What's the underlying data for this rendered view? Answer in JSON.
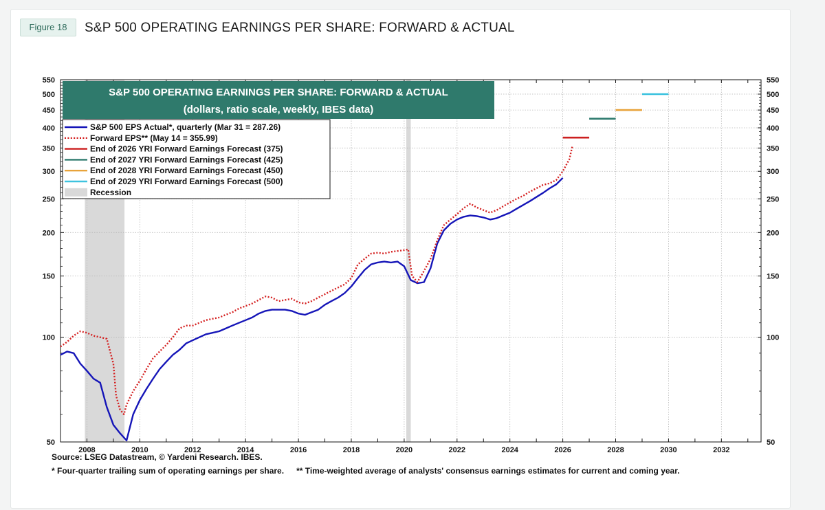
{
  "figure_tag": "Figure 18",
  "page_title": "S&P 500 OPERATING EARNINGS PER SHARE: FORWARD & ACTUAL",
  "source": "Source: LSEG Datastream, © Yardeni Research. IBES.",
  "footnote_1": "* Four-quarter trailing sum of operating earnings per share.",
  "footnote_2": "** Time-weighted average of analysts' consensus earnings estimates for current and coming year.",
  "chart_data": {
    "type": "line",
    "title": "S&P 500 OPERATING EARNINGS PER SHARE: FORWARD & ACTUAL",
    "subtitle": "(dollars, ratio scale, weekly, IBES data)",
    "y_scale": "log",
    "ylim": [
      50,
      550
    ],
    "xlim": [
      2007.0,
      2033.5
    ],
    "y_ticks": [
      50,
      100,
      150,
      200,
      250,
      300,
      350,
      400,
      450,
      500,
      550
    ],
    "x_ticks": [
      2008,
      2010,
      2012,
      2014,
      2016,
      2018,
      2020,
      2022,
      2024,
      2026,
      2028,
      2030,
      2032
    ],
    "grid": true,
    "legend_position": "top-left",
    "colors": {
      "actual": "#1515b8",
      "forward": "#d42020",
      "f2026": "#cc1f1f",
      "f2027": "#2e7a6e",
      "f2028": "#e8a33a",
      "f2029": "#3ec3df",
      "recession": "#d9d9d9",
      "header_bg": "#2f7a6c"
    },
    "recessions": [
      {
        "start": 2007.92,
        "end": 2009.42
      },
      {
        "start": 2020.08,
        "end": 2020.25
      }
    ],
    "series": [
      {
        "name": "S&P 500 EPS Actual*, quarterly (Mar 31 = 287.26)",
        "style": "solid",
        "points": [
          [
            2007.0,
            89
          ],
          [
            2007.25,
            91
          ],
          [
            2007.5,
            90
          ],
          [
            2007.75,
            84
          ],
          [
            2008.0,
            80
          ],
          [
            2008.25,
            76
          ],
          [
            2008.5,
            74
          ],
          [
            2008.75,
            63
          ],
          [
            2009.0,
            56
          ],
          [
            2009.25,
            53
          ],
          [
            2009.5,
            50.5
          ],
          [
            2009.75,
            60
          ],
          [
            2010.0,
            66
          ],
          [
            2010.25,
            71
          ],
          [
            2010.5,
            76
          ],
          [
            2010.75,
            81
          ],
          [
            2011.0,
            85
          ],
          [
            2011.25,
            89
          ],
          [
            2011.5,
            92
          ],
          [
            2011.75,
            96
          ],
          [
            2012.0,
            98
          ],
          [
            2012.25,
            100
          ],
          [
            2012.5,
            102
          ],
          [
            2012.75,
            103
          ],
          [
            2013.0,
            104
          ],
          [
            2013.25,
            106
          ],
          [
            2013.5,
            108
          ],
          [
            2013.75,
            110
          ],
          [
            2014.0,
            112
          ],
          [
            2014.25,
            114
          ],
          [
            2014.5,
            117
          ],
          [
            2014.75,
            119
          ],
          [
            2015.0,
            120
          ],
          [
            2015.25,
            120
          ],
          [
            2015.5,
            120
          ],
          [
            2015.75,
            119
          ],
          [
            2016.0,
            117
          ],
          [
            2016.25,
            116
          ],
          [
            2016.5,
            118
          ],
          [
            2016.75,
            120
          ],
          [
            2017.0,
            124
          ],
          [
            2017.25,
            127
          ],
          [
            2017.5,
            130
          ],
          [
            2017.75,
            134
          ],
          [
            2018.0,
            140
          ],
          [
            2018.25,
            148
          ],
          [
            2018.5,
            156
          ],
          [
            2018.75,
            162
          ],
          [
            2019.0,
            164
          ],
          [
            2019.25,
            165
          ],
          [
            2019.5,
            164
          ],
          [
            2019.75,
            165
          ],
          [
            2020.0,
            160
          ],
          [
            2020.25,
            146
          ],
          [
            2020.5,
            143
          ],
          [
            2020.75,
            144
          ],
          [
            2021.0,
            158
          ],
          [
            2021.25,
            186
          ],
          [
            2021.5,
            203
          ],
          [
            2021.75,
            212
          ],
          [
            2022.0,
            218
          ],
          [
            2022.25,
            222
          ],
          [
            2022.5,
            224
          ],
          [
            2022.75,
            223
          ],
          [
            2023.0,
            221
          ],
          [
            2023.25,
            218
          ],
          [
            2023.5,
            220
          ],
          [
            2023.75,
            224
          ],
          [
            2024.0,
            228
          ],
          [
            2024.25,
            234
          ],
          [
            2024.5,
            240
          ],
          [
            2024.75,
            246
          ],
          [
            2025.0,
            253
          ],
          [
            2025.25,
            260
          ],
          [
            2025.5,
            268
          ],
          [
            2025.75,
            275
          ],
          [
            2026.0,
            287.26
          ]
        ]
      },
      {
        "name": "Forward EPS** (May 14 = 355.99)",
        "style": "dotted",
        "points": [
          [
            2007.0,
            94
          ],
          [
            2007.25,
            97
          ],
          [
            2007.5,
            101
          ],
          [
            2007.75,
            104
          ],
          [
            2008.0,
            103
          ],
          [
            2008.25,
            101
          ],
          [
            2008.5,
            100
          ],
          [
            2008.75,
            99
          ],
          [
            2009.0,
            84
          ],
          [
            2009.1,
            68
          ],
          [
            2009.25,
            62
          ],
          [
            2009.4,
            60
          ],
          [
            2009.5,
            64
          ],
          [
            2009.75,
            70
          ],
          [
            2010.0,
            75
          ],
          [
            2010.25,
            81
          ],
          [
            2010.5,
            87
          ],
          [
            2010.75,
            91
          ],
          [
            2011.0,
            95
          ],
          [
            2011.25,
            100
          ],
          [
            2011.5,
            106
          ],
          [
            2011.75,
            108
          ],
          [
            2012.0,
            108
          ],
          [
            2012.25,
            110
          ],
          [
            2012.5,
            112
          ],
          [
            2012.75,
            113
          ],
          [
            2013.0,
            114
          ],
          [
            2013.25,
            116
          ],
          [
            2013.5,
            118
          ],
          [
            2013.75,
            121
          ],
          [
            2014.0,
            123
          ],
          [
            2014.25,
            125
          ],
          [
            2014.5,
            128
          ],
          [
            2014.75,
            131
          ],
          [
            2015.0,
            130
          ],
          [
            2015.25,
            127
          ],
          [
            2015.5,
            128
          ],
          [
            2015.75,
            129
          ],
          [
            2016.0,
            126
          ],
          [
            2016.25,
            125
          ],
          [
            2016.5,
            127
          ],
          [
            2016.75,
            130
          ],
          [
            2017.0,
            133
          ],
          [
            2017.25,
            136
          ],
          [
            2017.5,
            139
          ],
          [
            2017.75,
            142
          ],
          [
            2018.0,
            148
          ],
          [
            2018.25,
            162
          ],
          [
            2018.5,
            168
          ],
          [
            2018.75,
            174
          ],
          [
            2019.0,
            175
          ],
          [
            2019.25,
            174
          ],
          [
            2019.5,
            176
          ],
          [
            2019.75,
            177
          ],
          [
            2020.0,
            178
          ],
          [
            2020.15,
            179
          ],
          [
            2020.3,
            150
          ],
          [
            2020.5,
            144
          ],
          [
            2020.75,
            155
          ],
          [
            2021.0,
            168
          ],
          [
            2021.25,
            190
          ],
          [
            2021.5,
            210
          ],
          [
            2021.75,
            218
          ],
          [
            2022.0,
            226
          ],
          [
            2022.25,
            235
          ],
          [
            2022.5,
            242
          ],
          [
            2022.75,
            236
          ],
          [
            2023.0,
            232
          ],
          [
            2023.25,
            228
          ],
          [
            2023.5,
            232
          ],
          [
            2023.75,
            238
          ],
          [
            2024.0,
            244
          ],
          [
            2024.25,
            250
          ],
          [
            2024.5,
            255
          ],
          [
            2024.75,
            262
          ],
          [
            2025.0,
            268
          ],
          [
            2025.25,
            274
          ],
          [
            2025.5,
            277
          ],
          [
            2025.75,
            283
          ],
          [
            2026.0,
            300
          ],
          [
            2026.25,
            325
          ],
          [
            2026.37,
            355.99
          ]
        ]
      }
    ],
    "forecasts": [
      {
        "name": "End of 2026 YRI Forward Earnings Forecast (375)",
        "key": "f2026",
        "value": 375,
        "x_start": 2026.0,
        "x_end": 2027.0
      },
      {
        "name": "End of 2027 YRI Forward Earnings Forecast (425)",
        "key": "f2027",
        "value": 425,
        "x_start": 2027.0,
        "x_end": 2028.0
      },
      {
        "name": "End of 2028 YRI Forward Earnings Forecast (450)",
        "key": "f2028",
        "value": 450,
        "x_start": 2028.0,
        "x_end": 2029.0
      },
      {
        "name": "End of 2029 YRI Forward Earnings Forecast (500)",
        "key": "f2029",
        "value": 500,
        "x_start": 2029.0,
        "x_end": 2030.0
      }
    ],
    "legend": [
      {
        "label": "S&P 500 EPS Actual*, quarterly (Mar 31 = 287.26)",
        "key": "actual",
        "style": "solid"
      },
      {
        "label": "Forward EPS** (May 14 = 355.99)",
        "key": "forward",
        "style": "dotted"
      },
      {
        "label": "End of 2026 YRI Forward Earnings Forecast (375)",
        "key": "f2026",
        "style": "solid"
      },
      {
        "label": "End of 2027 YRI Forward Earnings Forecast (425)",
        "key": "f2027",
        "style": "solid"
      },
      {
        "label": "End of 2028 YRI Forward Earnings Forecast (450)",
        "key": "f2028",
        "style": "solid"
      },
      {
        "label": "End of 2029 YRI Forward Earnings Forecast (500)",
        "key": "f2029",
        "style": "solid"
      },
      {
        "label": "Recession",
        "key": "recession",
        "style": "box"
      }
    ]
  }
}
